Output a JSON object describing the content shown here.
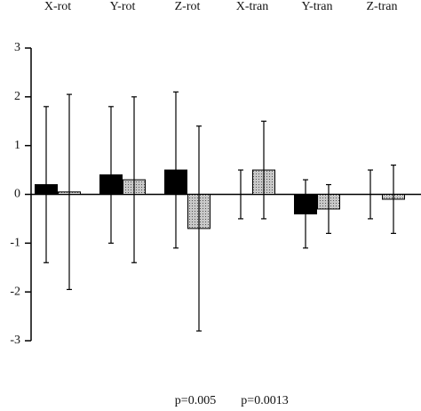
{
  "chart_data": {
    "type": "bar",
    "categories": [
      "X-rot",
      "Y-rot",
      "Z-rot",
      "X-tran",
      "Y-tran",
      "Z-tran"
    ],
    "series": [
      {
        "color": "#000000",
        "values": [
          0.2,
          0.4,
          0.5,
          0,
          -0.4,
          0
        ],
        "errors": [
          1.6,
          1.4,
          1.6,
          0.5,
          0.7,
          0.5
        ]
      },
      {
        "color": "#a8a8a8",
        "values": [
          0.05,
          0.3,
          -0.7,
          0.5,
          -0.3,
          -0.1
        ],
        "errors": [
          2.0,
          1.7,
          2.1,
          1.0,
          0.5,
          0.7
        ]
      }
    ],
    "ylim": [
      -3,
      3
    ],
    "yticks": [
      -3,
      -2,
      -1,
      0,
      1,
      2,
      3
    ],
    "annotations": [
      "p=0.005",
      "p=0.0013"
    ]
  }
}
